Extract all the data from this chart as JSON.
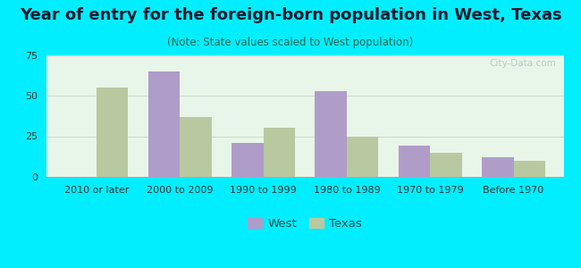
{
  "title": "Year of entry for the foreign-born population in West, Texas",
  "subtitle": "(Note: State values scaled to West population)",
  "categories": [
    "2010 or later",
    "2000 to 2009",
    "1990 to 1999",
    "1980 to 1989",
    "1970 to 1979",
    "Before 1970"
  ],
  "west_values": [
    0,
    65,
    21,
    53,
    19,
    12
  ],
  "texas_values": [
    55,
    37,
    30,
    25,
    15,
    10
  ],
  "west_color": "#b09cc8",
  "texas_color": "#b8c9a0",
  "background_outer": "#00eeff",
  "background_inner_top": "#e8f5e9",
  "background_inner_bottom": "#f5fff5",
  "ylim": [
    0,
    75
  ],
  "yticks": [
    0,
    25,
    50,
    75
  ],
  "bar_width": 0.38,
  "title_fontsize": 13,
  "subtitle_fontsize": 8.5,
  "tick_fontsize": 8,
  "legend_fontsize": 9.5,
  "watermark": "City-Data.com"
}
